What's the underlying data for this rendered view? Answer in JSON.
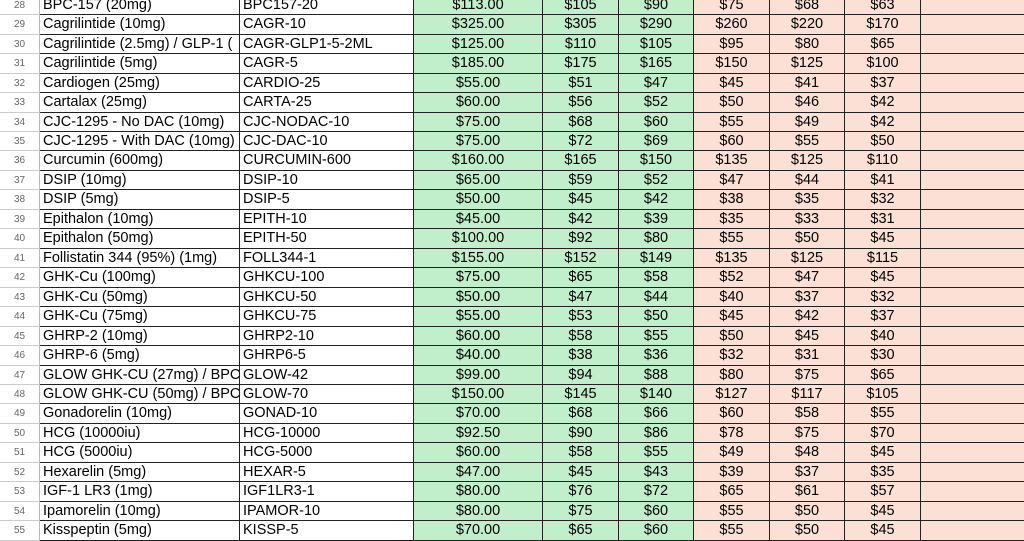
{
  "colors": {
    "green_fill": "#c2efcb",
    "pink_fill": "#fce0d5",
    "grid": "#222222"
  },
  "rows": [
    [
      "28",
      "BPC-157 (20mg)",
      "BPC157-20",
      "$113.00",
      "$105",
      "$90",
      "$75",
      "$68",
      "$63"
    ],
    [
      "29",
      "Cagrilintide (10mg)",
      "CAGR-10",
      "$325.00",
      "$305",
      "$290",
      "$260",
      "$220",
      "$170"
    ],
    [
      "30",
      "Cagrilintide (2.5mg) / GLP-1 (",
      "CAGR-GLP1-5-2ML",
      "$125.00",
      "$110",
      "$105",
      "$95",
      "$80",
      "$65"
    ],
    [
      "31",
      "Cagrilintide (5mg)",
      "CAGR-5",
      "$185.00",
      "$175",
      "$165",
      "$150",
      "$125",
      "$100"
    ],
    [
      "32",
      "Cardiogen (25mg)",
      "CARDIO-25",
      "$55.00",
      "$51",
      "$47",
      "$45",
      "$41",
      "$37"
    ],
    [
      "33",
      "Cartalax (25mg)",
      "CARTA-25",
      "$60.00",
      "$56",
      "$52",
      "$50",
      "$46",
      "$42"
    ],
    [
      "34",
      "CJC-1295 - No DAC (10mg)",
      "CJC-NODAC-10",
      "$75.00",
      "$68",
      "$60",
      "$55",
      "$49",
      "$42"
    ],
    [
      "35",
      "CJC-1295 - With DAC (10mg)",
      "CJC-DAC-10",
      "$75.00",
      "$72",
      "$69",
      "$60",
      "$55",
      "$50"
    ],
    [
      "36",
      "Curcumin (600mg)",
      "CURCUMIN-600",
      "$160.00",
      "$165",
      "$150",
      "$135",
      "$125",
      "$110"
    ],
    [
      "37",
      "DSIP (10mg)",
      "DSIP-10",
      "$65.00",
      "$59",
      "$52",
      "$47",
      "$44",
      "$41"
    ],
    [
      "38",
      "DSIP (5mg)",
      "DSIP-5",
      "$50.00",
      "$45",
      "$42",
      "$38",
      "$35",
      "$32"
    ],
    [
      "39",
      "Epithalon (10mg)",
      "EPITH-10",
      "$45.00",
      "$42",
      "$39",
      "$35",
      "$33",
      "$31"
    ],
    [
      "40",
      "Epithalon (50mg)",
      "EPITH-50",
      "$100.00",
      "$92",
      "$80",
      "$55",
      "$50",
      "$45"
    ],
    [
      "41",
      "Follistatin 344 (95%) (1mg)",
      "FOLL344-1",
      "$155.00",
      "$152",
      "$149",
      "$135",
      "$125",
      "$115"
    ],
    [
      "42",
      "GHK-Cu (100mg)",
      "GHKCU-100",
      "$75.00",
      "$65",
      "$58",
      "$52",
      "$47",
      "$45"
    ],
    [
      "43",
      "GHK-Cu (50mg)",
      "GHKCU-50",
      "$50.00",
      "$47",
      "$44",
      "$40",
      "$37",
      "$32"
    ],
    [
      "44",
      "GHK-Cu (75mg)",
      "GHKCU-75",
      "$55.00",
      "$53",
      "$50",
      "$45",
      "$42",
      "$37"
    ],
    [
      "45",
      "GHRP-2 (10mg)",
      "GHRP2-10",
      "$60.00",
      "$58",
      "$55",
      "$50",
      "$45",
      "$40"
    ],
    [
      "46",
      "GHRP-6 (5mg)",
      "GHRP6-5",
      "$40.00",
      "$38",
      "$36",
      "$32",
      "$31",
      "$30"
    ],
    [
      "47",
      "GLOW GHK-CU (27mg) / BPC",
      "GLOW-42",
      "$99.00",
      "$94",
      "$88",
      "$80",
      "$75",
      "$65"
    ],
    [
      "48",
      "GLOW GHK-CU (50mg) / BPC",
      "GLOW-70",
      "$150.00",
      "$145",
      "$140",
      "$127",
      "$117",
      "$105"
    ],
    [
      "49",
      "Gonadorelin (10mg)",
      "GONAD-10",
      "$70.00",
      "$68",
      "$66",
      "$60",
      "$58",
      "$55"
    ],
    [
      "50",
      "HCG (10000iu)",
      "HCG-10000",
      "$92.50",
      "$90",
      "$86",
      "$78",
      "$75",
      "$70"
    ],
    [
      "51",
      "HCG (5000iu)",
      "HCG-5000",
      "$60.00",
      "$58",
      "$55",
      "$49",
      "$48",
      "$45"
    ],
    [
      "52",
      "Hexarelin (5mg)",
      "HEXAR-5",
      "$47.00",
      "$45",
      "$43",
      "$39",
      "$37",
      "$35"
    ],
    [
      "53",
      "IGF-1 LR3 (1mg)",
      "IGF1LR3-1",
      "$80.00",
      "$76",
      "$72",
      "$65",
      "$61",
      "$57"
    ],
    [
      "54",
      "Ipamorelin (10mg)",
      "IPAMOR-10",
      "$80.00",
      "$75",
      "$60",
      "$55",
      "$50",
      "$45"
    ],
    [
      "55",
      "Kisspeptin (5mg)",
      "KISSP-5",
      "$70.00",
      "$65",
      "$60",
      "$55",
      "$50",
      "$45"
    ]
  ]
}
